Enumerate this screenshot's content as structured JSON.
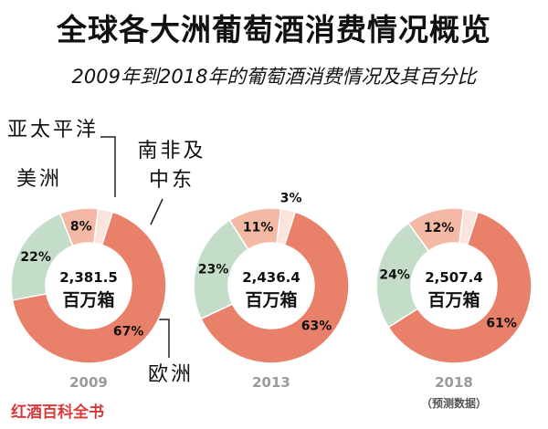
{
  "title": "全球各大洲葡萄酒消费情况概览",
  "subtitle": "2009年到2018年的葡萄酒消费情况及其百分比",
  "region_labels": {
    "asia_pacific": "亚太平洋",
    "americas": "美洲",
    "me_africa_line1": "南非及",
    "me_africa_line2": "中东",
    "europe": "欧洲"
  },
  "brand": "红酒百科全书",
  "colors": {
    "europe": "#e8806a",
    "americas": "#c3ddc9",
    "asia_pacific": "#f4b9a5",
    "me_africa": "#fbe4db"
  },
  "chart_data": {
    "type": "pie",
    "title": "全球各大洲葡萄酒消费情况概览",
    "subtitle": "2009年到2018年的葡萄酒消费情况及其百分比",
    "series_names": [
      "欧洲",
      "美洲",
      "亚太平洋",
      "南非及中东"
    ],
    "charts": [
      {
        "year": "2009",
        "total": "2,381.5",
        "unit": "百万箱",
        "note": "",
        "slices": [
          {
            "name": "欧洲",
            "value": 67,
            "label": "67%"
          },
          {
            "name": "美洲",
            "value": 22,
            "label": "22%"
          },
          {
            "name": "亚太平洋",
            "value": 8,
            "label": "8%"
          },
          {
            "name": "南非及中东",
            "value": 3,
            "label": ""
          }
        ]
      },
      {
        "year": "2013",
        "total": "2,436.4",
        "unit": "百万箱",
        "note": "",
        "slices": [
          {
            "name": "欧洲",
            "value": 63,
            "label": "63%"
          },
          {
            "name": "美洲",
            "value": 23,
            "label": "23%"
          },
          {
            "name": "亚太平洋",
            "value": 11,
            "label": "11%"
          },
          {
            "name": "南非及中东",
            "value": 3,
            "label": "3%"
          }
        ]
      },
      {
        "year": "2018",
        "total": "2,507.4",
        "unit": "百万箱",
        "note": "（预测数据）",
        "slices": [
          {
            "name": "欧洲",
            "value": 61,
            "label": "61%"
          },
          {
            "name": "美洲",
            "value": 24,
            "label": "24%"
          },
          {
            "name": "亚太平洋",
            "value": 12,
            "label": "12%"
          },
          {
            "name": "南非及中东",
            "value": 3,
            "label": ""
          }
        ]
      }
    ]
  }
}
